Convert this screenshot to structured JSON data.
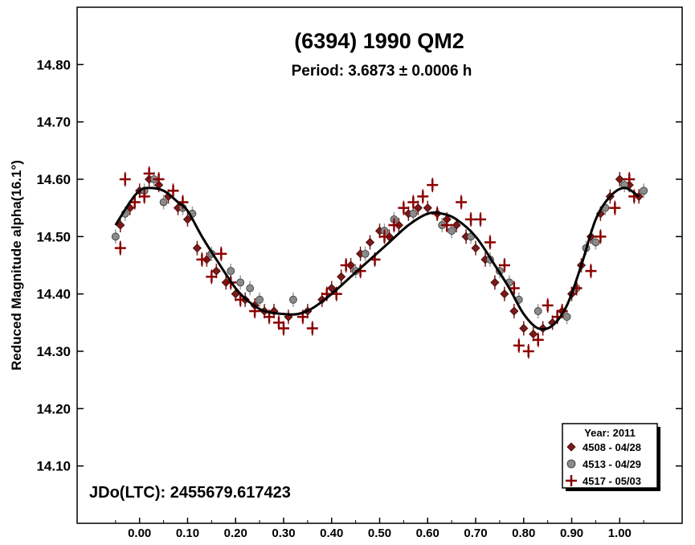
{
  "chart_data": {
    "type": "scatter",
    "title": "(6394) 1990 QM2",
    "subtitle": "Period: 3.6873 ± 0.0006 h",
    "xlabel": "",
    "ylabel": "Reduced Magnitude alpha(16.1°)",
    "xlim": [
      -0.13,
      1.13
    ],
    "ylim": [
      14.9,
      14.0
    ],
    "y_inverted": true,
    "x_ticks": [
      "0.00",
      "0.10",
      "0.20",
      "0.30",
      "0.40",
      "0.50",
      "0.60",
      "0.70",
      "0.80",
      "0.90",
      "1.00"
    ],
    "x_tick_values": [
      0.0,
      0.1,
      0.2,
      0.3,
      0.4,
      0.5,
      0.6,
      0.7,
      0.8,
      0.9,
      1.0
    ],
    "y_ticks": [
      "14.10",
      "14.20",
      "14.30",
      "14.40",
      "14.50",
      "14.60",
      "14.70",
      "14.80"
    ],
    "y_tick_values": [
      14.1,
      14.2,
      14.3,
      14.4,
      14.5,
      14.6,
      14.7,
      14.8
    ],
    "annotation": "JDo(LTC): 2455679.617423",
    "legend": {
      "title": "Year: 2011",
      "position": "bottom-right",
      "entries": [
        "4508 - 04/28",
        "4513 - 04/29",
        "4517 - 05/03"
      ]
    },
    "fit_curve": {
      "name": "",
      "color": "#000000",
      "x": [
        -0.05,
        -0.02,
        0.0,
        0.02,
        0.05,
        0.08,
        0.1,
        0.13,
        0.16,
        0.2,
        0.23,
        0.26,
        0.3,
        0.33,
        0.36,
        0.4,
        0.44,
        0.48,
        0.52,
        0.56,
        0.6,
        0.63,
        0.66,
        0.7,
        0.74,
        0.77,
        0.8,
        0.83,
        0.86,
        0.89,
        0.92,
        0.95,
        0.98,
        1.01,
        1.04
      ],
      "y": [
        14.52,
        14.56,
        14.58,
        14.585,
        14.58,
        14.56,
        14.545,
        14.5,
        14.46,
        14.41,
        14.385,
        14.37,
        14.365,
        14.365,
        14.375,
        14.4,
        14.43,
        14.46,
        14.49,
        14.52,
        14.54,
        14.54,
        14.53,
        14.5,
        14.45,
        14.41,
        14.365,
        14.34,
        14.345,
        14.38,
        14.45,
        14.53,
        14.57,
        14.585,
        14.57
      ]
    },
    "series": [
      {
        "name": "4508 - 04/28",
        "marker": "diamond",
        "color": "#7a1a1a",
        "x": [
          -0.04,
          -0.02,
          0.0,
          0.02,
          0.04,
          0.06,
          0.08,
          0.1,
          0.12,
          0.14,
          0.16,
          0.18,
          0.2,
          0.22,
          0.24,
          0.26,
          0.28,
          0.31,
          0.35,
          0.38,
          0.4,
          0.42,
          0.44,
          0.46,
          0.48,
          0.5,
          0.52,
          0.54,
          0.56,
          0.58,
          0.6,
          0.62,
          0.64,
          0.66,
          0.68,
          0.7,
          0.72,
          0.74,
          0.76,
          0.78,
          0.8,
          0.82,
          0.84,
          0.86,
          0.88,
          0.9,
          0.92,
          0.94,
          0.96,
          0.98,
          1.0,
          1.02,
          1.04
        ],
        "y": [
          14.52,
          14.55,
          14.58,
          14.6,
          14.59,
          14.57,
          14.55,
          14.53,
          14.48,
          14.46,
          14.44,
          14.42,
          14.4,
          14.39,
          14.38,
          14.37,
          14.37,
          14.36,
          14.37,
          14.39,
          14.41,
          14.43,
          14.45,
          14.47,
          14.49,
          14.51,
          14.5,
          14.52,
          14.54,
          14.55,
          14.55,
          14.54,
          14.53,
          14.52,
          14.5,
          14.48,
          14.46,
          14.42,
          14.4,
          14.37,
          14.34,
          14.33,
          14.34,
          14.35,
          14.37,
          14.4,
          14.45,
          14.5,
          14.54,
          14.57,
          14.6,
          14.59,
          14.57
        ]
      },
      {
        "name": "4513 - 04/29",
        "marker": "circle",
        "color": "#808080",
        "x": [
          -0.05,
          -0.03,
          0.01,
          0.03,
          0.05,
          0.09,
          0.11,
          0.15,
          0.19,
          0.21,
          0.23,
          0.25,
          0.32,
          0.45,
          0.47,
          0.51,
          0.53,
          0.57,
          0.63,
          0.65,
          0.69,
          0.73,
          0.75,
          0.77,
          0.79,
          0.83,
          0.89,
          0.91,
          0.93,
          0.95,
          0.97,
          1.01,
          1.05
        ],
        "y": [
          14.5,
          14.54,
          14.58,
          14.6,
          14.56,
          14.55,
          14.54,
          14.47,
          14.44,
          14.42,
          14.41,
          14.39,
          14.39,
          14.44,
          14.47,
          14.51,
          14.53,
          14.54,
          14.52,
          14.51,
          14.5,
          14.46,
          14.44,
          14.42,
          14.39,
          14.37,
          14.36,
          14.41,
          14.48,
          14.49,
          14.55,
          14.59,
          14.58
        ]
      },
      {
        "name": "4517 - 05/03",
        "marker": "plus",
        "color": "#8b0000",
        "x": [
          -0.04,
          -0.03,
          -0.01,
          0.01,
          0.02,
          0.04,
          0.07,
          0.09,
          0.13,
          0.15,
          0.17,
          0.19,
          0.21,
          0.24,
          0.27,
          0.29,
          0.3,
          0.34,
          0.36,
          0.39,
          0.41,
          0.43,
          0.46,
          0.49,
          0.51,
          0.53,
          0.55,
          0.57,
          0.59,
          0.61,
          0.62,
          0.64,
          0.67,
          0.69,
          0.71,
          0.73,
          0.76,
          0.78,
          0.79,
          0.81,
          0.83,
          0.85,
          0.87,
          0.88,
          0.91,
          0.94,
          0.96,
          0.99,
          1.02,
          1.03
        ],
        "y": [
          14.48,
          14.6,
          14.56,
          14.57,
          14.61,
          14.6,
          14.58,
          14.56,
          14.46,
          14.43,
          14.47,
          14.42,
          14.39,
          14.37,
          14.36,
          14.35,
          14.34,
          14.36,
          14.34,
          14.4,
          14.4,
          14.45,
          14.44,
          14.46,
          14.5,
          14.52,
          14.55,
          14.56,
          14.57,
          14.59,
          14.54,
          14.52,
          14.56,
          14.53,
          14.53,
          14.49,
          14.45,
          14.41,
          14.31,
          14.3,
          14.32,
          14.38,
          14.36,
          14.37,
          14.41,
          14.44,
          14.5,
          14.55,
          14.6,
          14.57
        ]
      }
    ]
  }
}
